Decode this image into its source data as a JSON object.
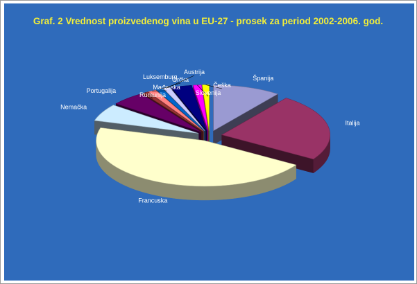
{
  "chart_data": {
    "type": "pie",
    "title": "Graf. 2 Vrednost proizvedenog vina u EU-27 - prosek za period 2002-2006. god.",
    "legend": "none",
    "slices": [
      {
        "label": "Španija",
        "value": 10.0,
        "color": "#9a9ad2"
      },
      {
        "label": "Italija",
        "value": 23.5,
        "color": "#993366"
      },
      {
        "label": "Francuska",
        "value": 45.0,
        "color": "#ffffcc"
      },
      {
        "label": "Nemačka",
        "value": 6.0,
        "color": "#ccecff"
      },
      {
        "label": "Portugalija",
        "value": 5.0,
        "color": "#660066"
      },
      {
        "label": "Rumunija",
        "value": 0.8,
        "color": "#993333"
      },
      {
        "label": "Mađarska",
        "value": 1.2,
        "color": "#ff8080"
      },
      {
        "label": "Grčka",
        "value": 1.0,
        "color": "#0066cc"
      },
      {
        "label": "Austrija",
        "value": 1.0,
        "color": "#ccccff"
      },
      {
        "label": "Luksemburg",
        "value": 3.0,
        "color": "#000080"
      },
      {
        "label": "Slovenija",
        "value": 1.2,
        "color": "#ff00ff"
      },
      {
        "label": "Češka",
        "value": 1.0,
        "color": "#ffff00"
      }
    ]
  }
}
